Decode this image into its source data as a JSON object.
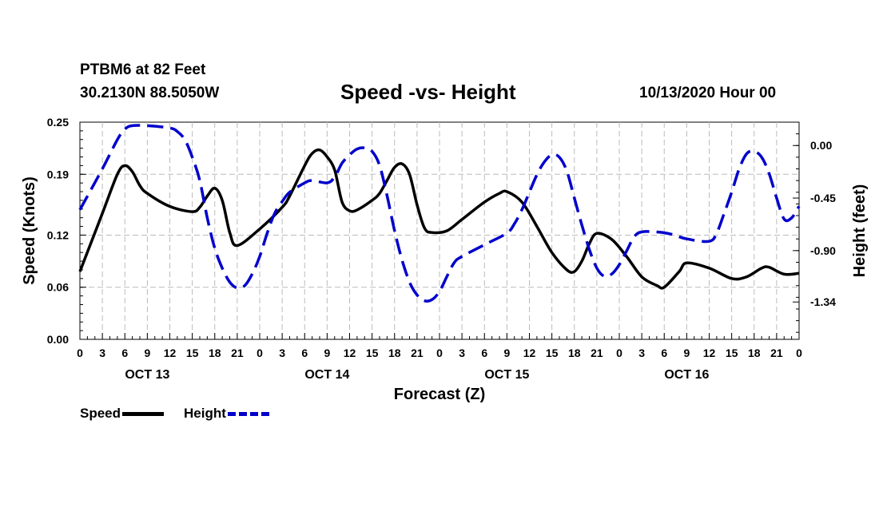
{
  "header": {
    "station": "PTBM6 at 82 Feet",
    "coords": "30.2130N 88.5050W",
    "title": "Speed -vs- Height",
    "date": "10/13/2020 Hour 00"
  },
  "legend": {
    "speed_label": "Speed",
    "height_label": "Height"
  },
  "colors": {
    "speed": "#000000",
    "height": "#0000cc",
    "grid": "#bbbbbb"
  },
  "chart_data": {
    "type": "line",
    "title": "Speed -vs- Height",
    "xlabel": "Forecast (Z)",
    "ylabel_left": "Speed (Knots)",
    "ylabel_right": "Height (feet)",
    "x_range": [
      0,
      96
    ],
    "x_ticks": [
      "0",
      "3",
      "6",
      "9",
      "12",
      "15",
      "18",
      "21",
      "0",
      "3",
      "6",
      "9",
      "12",
      "15",
      "18",
      "21",
      "0",
      "3",
      "6",
      "9",
      "12",
      "15",
      "18",
      "21",
      "0",
      "3",
      "6",
      "9",
      "12",
      "15",
      "18",
      "21",
      "0"
    ],
    "date_labels": [
      {
        "label": "OCT 13",
        "at_hour": 9
      },
      {
        "label": "OCT 14",
        "at_hour": 33
      },
      {
        "label": "OCT 15",
        "at_hour": 57
      },
      {
        "label": "OCT 16",
        "at_hour": 81
      }
    ],
    "y_left": {
      "range": [
        0,
        0.25
      ],
      "ticks": [
        "0.25",
        "0.19",
        "0.12",
        "0.06",
        "0.00"
      ],
      "tick_values": [
        0.25,
        0.19,
        0.12,
        0.06,
        0.0
      ]
    },
    "y_right": {
      "range": [
        -1.66,
        0.2
      ],
      "ticks": [
        "0.00",
        "-0.45",
        "-0.90",
        "-1.34"
      ],
      "tick_values": [
        0.0,
        -0.45,
        -0.9,
        -1.34
      ]
    },
    "grid": true,
    "series": [
      {
        "name": "Speed",
        "axis": "left",
        "style": "solid",
        "points": [
          [
            0,
            0.078
          ],
          [
            3,
            0.145
          ],
          [
            5,
            0.19
          ],
          [
            6,
            0.2
          ],
          [
            7,
            0.193
          ],
          [
            8,
            0.177
          ],
          [
            9,
            0.168
          ],
          [
            12,
            0.153
          ],
          [
            15,
            0.147
          ],
          [
            16,
            0.152
          ],
          [
            17,
            0.165
          ],
          [
            18,
            0.174
          ],
          [
            19,
            0.16
          ],
          [
            20,
            0.123
          ],
          [
            21,
            0.108
          ],
          [
            24,
            0.127
          ],
          [
            27,
            0.152
          ],
          [
            28,
            0.165
          ],
          [
            30,
            0.2
          ],
          [
            31,
            0.214
          ],
          [
            32,
            0.218
          ],
          [
            33,
            0.21
          ],
          [
            34,
            0.195
          ],
          [
            35,
            0.158
          ],
          [
            36,
            0.148
          ],
          [
            37,
            0.149
          ],
          [
            39,
            0.16
          ],
          [
            40,
            0.168
          ],
          [
            41,
            0.183
          ],
          [
            42,
            0.198
          ],
          [
            43,
            0.202
          ],
          [
            44,
            0.19
          ],
          [
            45,
            0.155
          ],
          [
            46,
            0.128
          ],
          [
            47,
            0.123
          ],
          [
            49,
            0.125
          ],
          [
            51,
            0.138
          ],
          [
            54,
            0.158
          ],
          [
            56,
            0.168
          ],
          [
            57,
            0.17
          ],
          [
            59,
            0.158
          ],
          [
            61,
            0.13
          ],
          [
            63,
            0.1
          ],
          [
            65,
            0.08
          ],
          [
            66,
            0.078
          ],
          [
            67,
            0.09
          ],
          [
            68,
            0.11
          ],
          [
            69,
            0.122
          ],
          [
            71,
            0.115
          ],
          [
            73,
            0.095
          ],
          [
            75,
            0.072
          ],
          [
            77,
            0.062
          ],
          [
            78,
            0.06
          ],
          [
            80,
            0.078
          ],
          [
            81,
            0.088
          ],
          [
            84,
            0.082
          ],
          [
            87,
            0.07
          ],
          [
            89,
            0.072
          ],
          [
            91,
            0.082
          ],
          [
            92,
            0.083
          ],
          [
            94,
            0.075
          ],
          [
            96,
            0.076
          ]
        ]
      },
      {
        "name": "Height",
        "axis": "right",
        "style": "dashed",
        "points": [
          [
            0,
            -0.55
          ],
          [
            3,
            -0.2
          ],
          [
            5,
            0.05
          ],
          [
            6,
            0.14
          ],
          [
            7,
            0.17
          ],
          [
            9,
            0.17
          ],
          [
            12,
            0.15
          ],
          [
            13,
            0.12
          ],
          [
            14,
            0.05
          ],
          [
            15,
            -0.1
          ],
          [
            16,
            -0.3
          ],
          [
            17,
            -0.62
          ],
          [
            18,
            -0.88
          ],
          [
            19,
            -1.05
          ],
          [
            20,
            -1.17
          ],
          [
            21,
            -1.22
          ],
          [
            22,
            -1.2
          ],
          [
            23,
            -1.1
          ],
          [
            24,
            -0.95
          ],
          [
            25,
            -0.75
          ],
          [
            26,
            -0.58
          ],
          [
            27,
            -0.48
          ],
          [
            28,
            -0.4
          ],
          [
            30,
            -0.32
          ],
          [
            31,
            -0.3
          ],
          [
            33,
            -0.32
          ],
          [
            34,
            -0.27
          ],
          [
            35,
            -0.15
          ],
          [
            36,
            -0.08
          ],
          [
            37,
            -0.03
          ],
          [
            38,
            -0.02
          ],
          [
            39,
            -0.05
          ],
          [
            40,
            -0.17
          ],
          [
            41,
            -0.43
          ],
          [
            42,
            -0.73
          ],
          [
            43,
            -0.98
          ],
          [
            44,
            -1.17
          ],
          [
            45,
            -1.28
          ],
          [
            46,
            -1.33
          ],
          [
            47,
            -1.32
          ],
          [
            48,
            -1.25
          ],
          [
            49,
            -1.12
          ],
          [
            50,
            -1.0
          ],
          [
            51,
            -0.95
          ],
          [
            54,
            -0.85
          ],
          [
            57,
            -0.75
          ],
          [
            58,
            -0.67
          ],
          [
            59,
            -0.55
          ],
          [
            60,
            -0.4
          ],
          [
            61,
            -0.25
          ],
          [
            62,
            -0.14
          ],
          [
            63,
            -0.08
          ],
          [
            64,
            -0.1
          ],
          [
            65,
            -0.22
          ],
          [
            66,
            -0.45
          ],
          [
            67,
            -0.68
          ],
          [
            68,
            -0.89
          ],
          [
            69,
            -1.05
          ],
          [
            70,
            -1.12
          ],
          [
            71,
            -1.1
          ],
          [
            72,
            -1.02
          ],
          [
            73,
            -0.9
          ],
          [
            74,
            -0.78
          ],
          [
            75,
            -0.74
          ],
          [
            77,
            -0.74
          ],
          [
            79,
            -0.76
          ],
          [
            81,
            -0.8
          ],
          [
            84,
            -0.82
          ],
          [
            85,
            -0.75
          ],
          [
            86,
            -0.58
          ],
          [
            87,
            -0.4
          ],
          [
            88,
            -0.2
          ],
          [
            89,
            -0.07
          ],
          [
            90,
            -0.05
          ],
          [
            91,
            -0.1
          ],
          [
            92,
            -0.24
          ],
          [
            93,
            -0.45
          ],
          [
            94,
            -0.63
          ],
          [
            95,
            -0.62
          ],
          [
            96,
            -0.52
          ]
        ]
      }
    ]
  }
}
